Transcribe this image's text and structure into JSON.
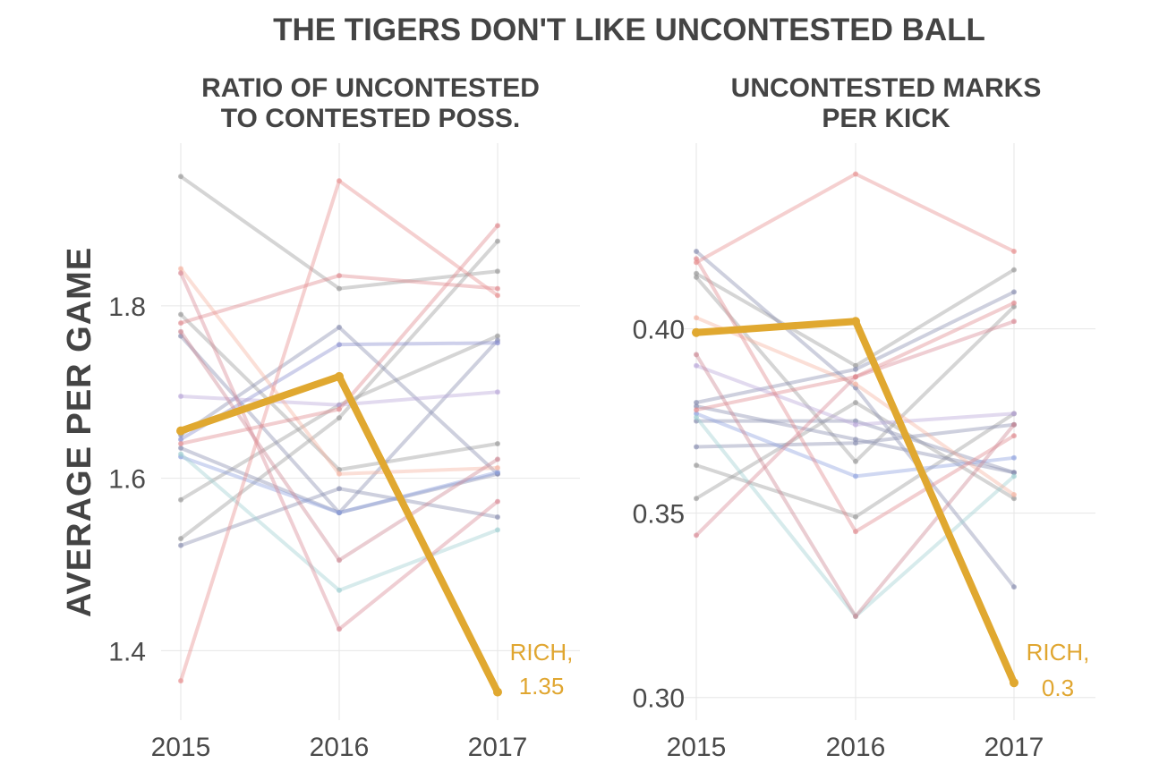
{
  "title": "THE TIGERS DON'T LIKE UNCONTESTED BALL",
  "ylabel": "AVERAGE PER GAME",
  "colors": {
    "highlight": "#e0a830",
    "text": "#444444",
    "grid": "#e6e6e6"
  },
  "chart_data": [
    {
      "type": "line",
      "title_lines": [
        "RATIO OF UNCONTESTED",
        "TO CONTESTED POSS."
      ],
      "x": [
        "2015",
        "2016",
        "2017"
      ],
      "yticks": [
        "1.4",
        "1.6",
        "1.8"
      ],
      "ylim": [
        1.335,
        1.97
      ],
      "grid": true,
      "series": [
        {
          "values": [
            1.95,
            1.82,
            1.84
          ],
          "color": "#9a9a9a"
        },
        {
          "values": [
            1.79,
            1.61,
            1.64
          ],
          "color": "#9a9a9a"
        },
        {
          "values": [
            1.575,
            1.685,
            1.765
          ],
          "color": "#9a9a9a"
        },
        {
          "values": [
            1.53,
            1.67,
            1.875
          ],
          "color": "#9a9a9a"
        },
        {
          "values": [
            1.635,
            1.56,
            1.76
          ],
          "color": "#8a8fb0"
        },
        {
          "values": [
            1.765,
            1.56,
            1.605
          ],
          "color": "#8a8fb0"
        },
        {
          "values": [
            1.645,
            1.755,
            1.757
          ],
          "color": "#8b8fd0"
        },
        {
          "values": [
            1.65,
            1.775,
            1.605
          ],
          "color": "#8a8fb0"
        },
        {
          "values": [
            1.522,
            1.588,
            1.555
          ],
          "color": "#8a8fb0"
        },
        {
          "values": [
            1.695,
            1.685,
            1.7
          ],
          "color": "#b9a6d8"
        },
        {
          "values": [
            1.625,
            1.56,
            1.607
          ],
          "color": "#8fa3e0"
        },
        {
          "values": [
            1.628,
            1.47,
            1.54
          ],
          "color": "#9fcfd2"
        },
        {
          "values": [
            1.843,
            1.605,
            1.612
          ],
          "color": "#f5b3a0"
        },
        {
          "values": [
            1.78,
            1.835,
            1.82
          ],
          "color": "#e08a90"
        },
        {
          "values": [
            1.838,
            1.425,
            1.573
          ],
          "color": "#d98a96"
        },
        {
          "values": [
            1.77,
            1.505,
            1.622
          ],
          "color": "#cc8894"
        },
        {
          "values": [
            1.365,
            1.945,
            1.812
          ],
          "color": "#e89090"
        },
        {
          "values": [
            1.64,
            1.68,
            1.893
          ],
          "color": "#e08a90"
        }
      ],
      "highlight": {
        "name": "RICH",
        "values": [
          1.655,
          1.718,
          1.352
        ]
      },
      "callout_lines": [
        "RICH,",
        "1.35"
      ]
    },
    {
      "type": "line",
      "title_lines": [
        "UNCONTESTED MARKS",
        "PER KICK"
      ],
      "x": [
        "2015",
        "2016",
        "2017"
      ],
      "yticks": [
        "0.30",
        "0.35",
        "0.40"
      ],
      "ylim": [
        0.2975,
        0.446
      ],
      "grid": true,
      "series": [
        {
          "values": [
            0.415,
            0.39,
            0.416
          ],
          "color": "#9a9a9a"
        },
        {
          "values": [
            0.414,
            0.364,
            0.406
          ],
          "color": "#9a9a9a"
        },
        {
          "values": [
            0.363,
            0.349,
            0.377
          ],
          "color": "#9a9a9a"
        },
        {
          "values": [
            0.354,
            0.38,
            0.354
          ],
          "color": "#9a9a9a"
        },
        {
          "values": [
            0.421,
            0.384,
            0.33
          ],
          "color": "#8a8fb0"
        },
        {
          "values": [
            0.379,
            0.37,
            0.361
          ],
          "color": "#8a8fb0"
        },
        {
          "values": [
            0.368,
            0.369,
            0.374
          ],
          "color": "#8a8fb0"
        },
        {
          "values": [
            0.38,
            0.389,
            0.41
          ],
          "color": "#8a8fb0"
        },
        {
          "values": [
            0.375,
            0.375,
            0.361
          ],
          "color": "#8a8fb0"
        },
        {
          "values": [
            0.39,
            0.374,
            0.377
          ],
          "color": "#b9a6d8"
        },
        {
          "values": [
            0.377,
            0.36,
            0.365
          ],
          "color": "#8fa3e0"
        },
        {
          "values": [
            0.376,
            0.322,
            0.36
          ],
          "color": "#9fcfd2"
        },
        {
          "values": [
            0.403,
            0.385,
            0.355
          ],
          "color": "#f5b3a0"
        },
        {
          "values": [
            0.419,
            0.345,
            0.371
          ],
          "color": "#e08a90"
        },
        {
          "values": [
            0.344,
            0.387,
            0.402
          ],
          "color": "#d98a96"
        },
        {
          "values": [
            0.393,
            0.322,
            0.374
          ],
          "color": "#cc8894"
        },
        {
          "values": [
            0.418,
            0.442,
            0.421
          ],
          "color": "#e89090"
        },
        {
          "values": [
            0.378,
            0.387,
            0.407
          ],
          "color": "#e08a90"
        }
      ],
      "highlight": {
        "name": "RICH",
        "values": [
          0.399,
          0.402,
          0.304
        ]
      },
      "callout_lines": [
        "RICH,",
        "0.3"
      ]
    }
  ]
}
